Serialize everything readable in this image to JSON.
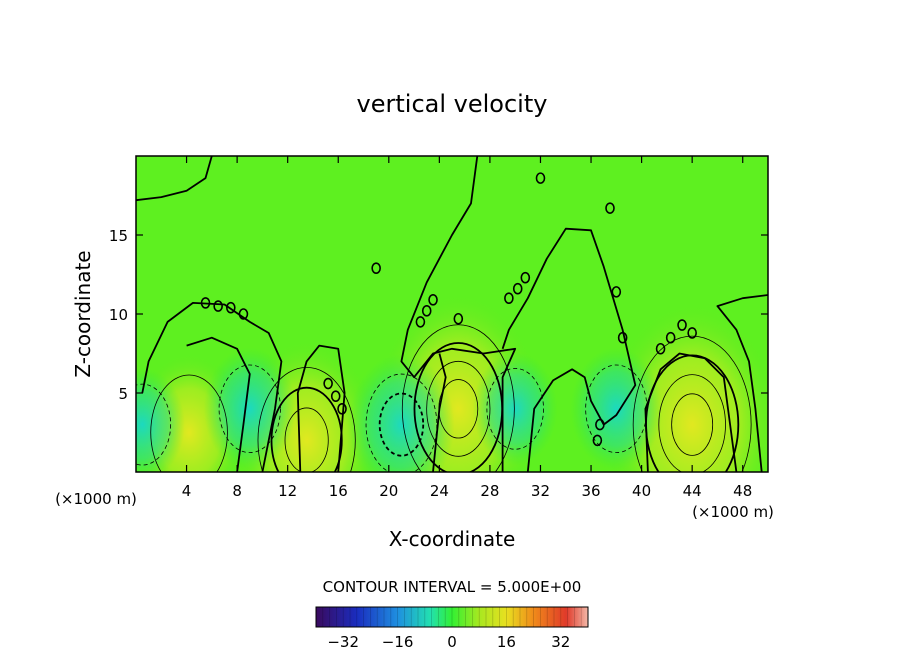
{
  "chart_data": {
    "type": "heatmap",
    "title": "vertical velocity",
    "xlabel": "X-coordinate",
    "ylabel": "Z-coordinate",
    "x_unit_left": "(×1000 m)",
    "x_unit_right": "(×1000 m)",
    "xlim": [
      0,
      50
    ],
    "ylim": [
      0,
      20
    ],
    "x_ticks": [
      4,
      8,
      12,
      16,
      20,
      24,
      28,
      32,
      36,
      40,
      44,
      48
    ],
    "y_ticks": [
      5,
      10,
      15
    ],
    "contour_interval_label": "CONTOUR INTERVAL = 5.000E+00",
    "colorbar": {
      "range": [
        -40,
        40
      ],
      "ticks": [
        -32,
        -16,
        0,
        16,
        32
      ],
      "colormap": "rainbow (purple-blue-cyan-green-yellow-orange-red)"
    },
    "features": [
      {
        "type": "updraft",
        "x": 25.5,
        "z": 4,
        "max": 20
      },
      {
        "type": "updraft",
        "x": 44,
        "z": 3,
        "max": 22
      },
      {
        "type": "updraft",
        "x": 13.5,
        "z": 2,
        "max": 15
      },
      {
        "type": "updraft",
        "x": 4.2,
        "z": 2.5,
        "max": 8
      },
      {
        "type": "downdraft",
        "x": 21,
        "z": 3,
        "min": -12
      },
      {
        "type": "downdraft",
        "x": 9,
        "z": 4,
        "min": -8
      },
      {
        "type": "downdraft",
        "x": 30,
        "z": 4,
        "min": -6
      },
      {
        "type": "downdraft",
        "x": 38,
        "z": 4,
        "min": -8
      },
      {
        "type": "downdraft",
        "x": 0.5,
        "z": 3,
        "min": -6
      }
    ],
    "grid": false,
    "legend": "bottom"
  }
}
